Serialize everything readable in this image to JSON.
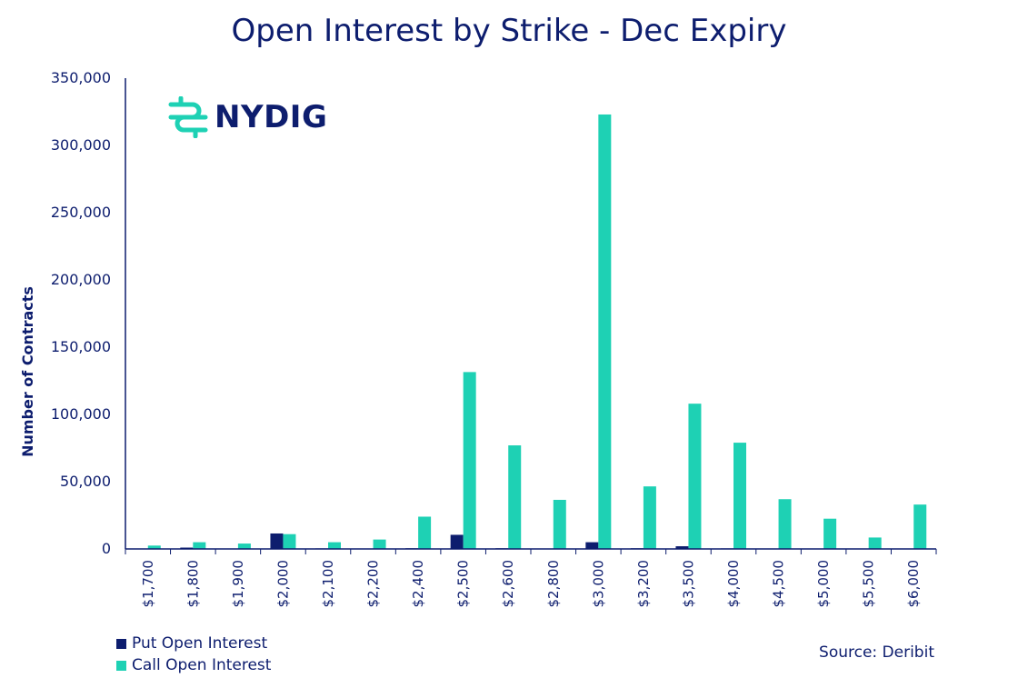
{
  "title": "Open Interest by Strike - Dec Expiry",
  "logo_text": "NYDIG",
  "source": "Source: Deribit",
  "colors": {
    "put": "#0d1d6e",
    "call": "#1ed1b4",
    "text": "#0d1d6e"
  },
  "chart_data": {
    "type": "bar",
    "title": "Open Interest by Strike - Dec Expiry",
    "xlabel": "",
    "ylabel": "Number of Contracts",
    "ylim": [
      0,
      350000
    ],
    "yticks": [
      "0",
      "50,000",
      "100,000",
      "150,000",
      "200,000",
      "250,000",
      "300,000",
      "350,000"
    ],
    "ytick_values": [
      0,
      50000,
      100000,
      150000,
      200000,
      250000,
      300000,
      350000
    ],
    "grid": false,
    "legend_position": "bottom-left",
    "categories": [
      "$1,700",
      "$1,800",
      "$1,900",
      "$2,000",
      "$2,100",
      "$2,200",
      "$2,400",
      "$2,500",
      "$2,600",
      "$2,800",
      "$3,000",
      "$3,200",
      "$3,500",
      "$4,000",
      "$4,500",
      "$5,000",
      "$5,500",
      "$6,000"
    ],
    "series": [
      {
        "name": "Put Open Interest",
        "color": "#0d1d6e",
        "values": [
          300,
          1000,
          300,
          11500,
          400,
          300,
          500,
          10500,
          500,
          300,
          5000,
          500,
          2000,
          400,
          300,
          300,
          300,
          300
        ]
      },
      {
        "name": "Call Open Interest",
        "color": "#1ed1b4",
        "values": [
          2500,
          5000,
          4000,
          11000,
          5000,
          7000,
          24000,
          131500,
          77000,
          36500,
          323000,
          46500,
          108000,
          79000,
          37000,
          22500,
          8500,
          33000
        ]
      }
    ]
  }
}
